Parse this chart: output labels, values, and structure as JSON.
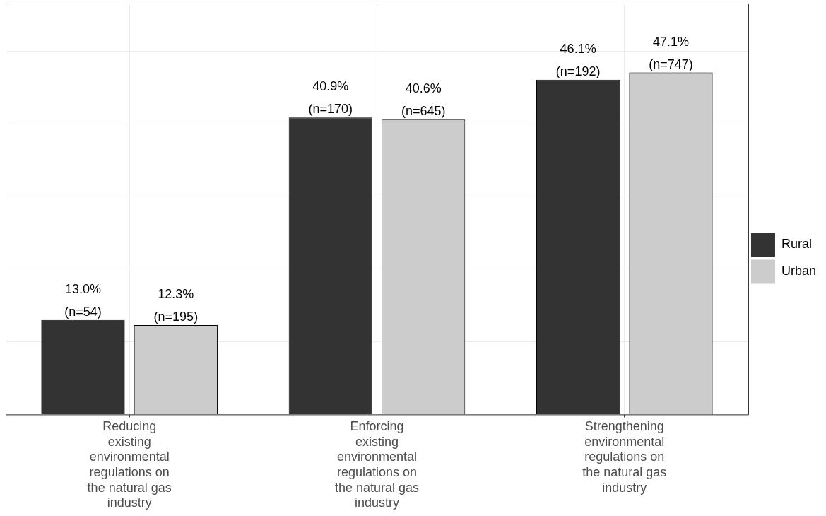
{
  "chart_data": {
    "type": "bar",
    "categories": [
      "Reducing existing environmental regulations on the natural gas industry",
      "Enforcing existing environmental regulations on the natural gas industry",
      "Strengthening environmental regulations on the natural gas industry"
    ],
    "series": [
      {
        "name": "Rural",
        "color": "#333333",
        "values": [
          13.0,
          40.9,
          46.1
        ],
        "value_labels": [
          "13.0%\n(n=54)",
          "40.9%\n(n=170)",
          "46.1%\n(n=192)"
        ]
      },
      {
        "name": "Urban",
        "color": "#cccccc",
        "values": [
          12.3,
          40.6,
          47.1
        ],
        "value_labels": [
          "12.3%\n(n=195)",
          "40.6%\n(n=645)",
          "47.1%\n(n=747)"
        ]
      }
    ],
    "ylim": [
      0,
      56.6
    ],
    "yticks": [
      {
        "value": 0,
        "label": null
      },
      {
        "value": 10,
        "label": null
      },
      {
        "value": 20,
        "label": null
      },
      {
        "value": 30,
        "label": null
      },
      {
        "value": 40,
        "label": null
      },
      {
        "value": 50,
        "label": null
      }
    ],
    "tick_labels": "x",
    "grid": true,
    "legend": "right"
  }
}
